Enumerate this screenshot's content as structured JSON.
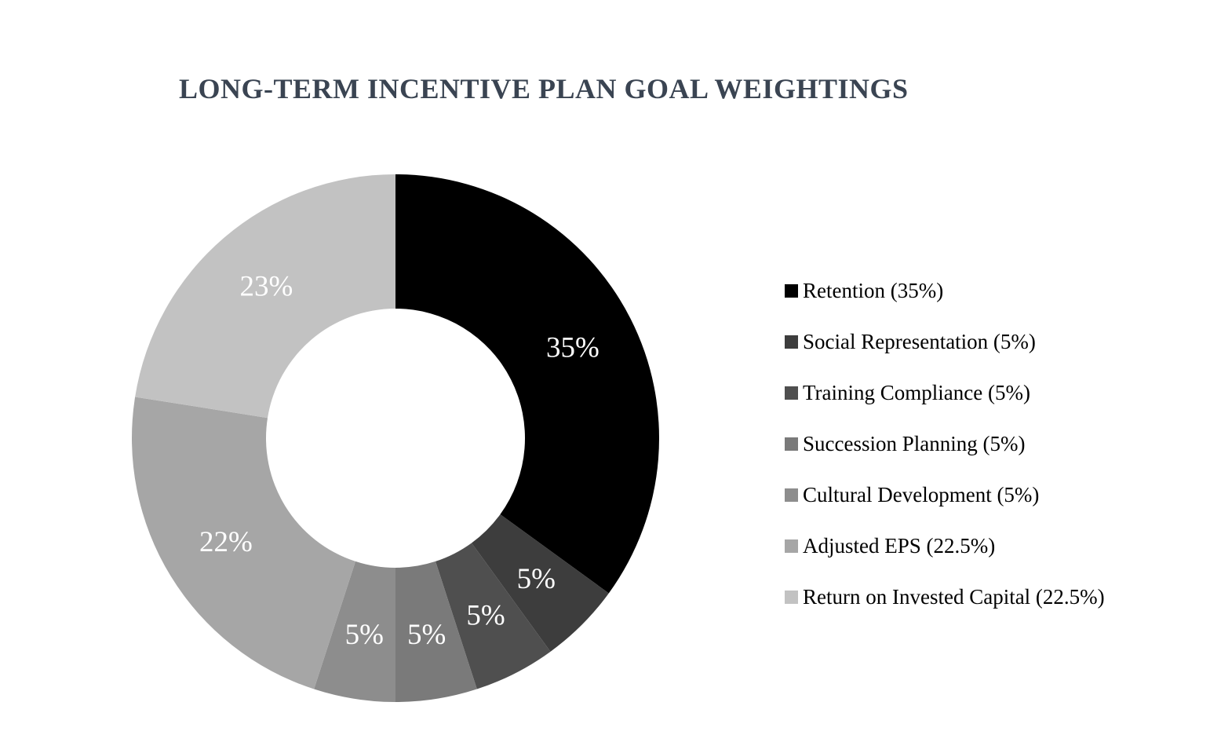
{
  "page": {
    "background_color": "#ffffff"
  },
  "chart_data": {
    "type": "pie",
    "subtype": "donut",
    "title": "LONG-TERM INCENTIVE PLAN GOAL WEIGHTINGS",
    "title_color": "#3a4452",
    "data_label_color": "#ffffff",
    "legend_position": "right",
    "grid": false,
    "donut_hole_ratio": 0.49,
    "start_angle_deg": 0,
    "direction": "clockwise",
    "slices": [
      {
        "name": "Retention",
        "value": 35,
        "data_label": "35%",
        "legend_label": "Retention (35%)",
        "color": "#000000"
      },
      {
        "name": "Social Representation",
        "value": 5,
        "data_label": "5%",
        "legend_label": "Social Representation (5%)",
        "color": "#3d3d3d"
      },
      {
        "name": "Training Compliance",
        "value": 5,
        "data_label": "5%",
        "legend_label": "Training Compliance (5%)",
        "color": "#4f4f4f"
      },
      {
        "name": "Succession Planning",
        "value": 5,
        "data_label": "5%",
        "legend_label": "Succession Planning (5%)",
        "color": "#7a7a7a"
      },
      {
        "name": "Cultural Development",
        "value": 5,
        "data_label": "5%",
        "legend_label": "Cultural Development (5%)",
        "color": "#8d8d8d"
      },
      {
        "name": "Adjusted EPS",
        "value": 22.5,
        "data_label": "22%",
        "legend_label": "Adjusted EPS (22.5%)",
        "color": "#a6a6a6"
      },
      {
        "name": "Return on Invested Capital",
        "value": 22.5,
        "data_label": "23%",
        "legend_label": "Return on Invested Capital (22.5%)",
        "color": "#c2c2c2"
      }
    ]
  }
}
